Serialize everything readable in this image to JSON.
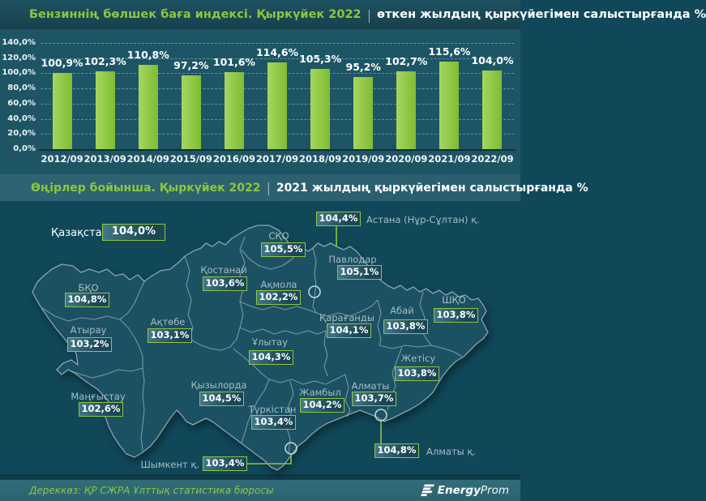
{
  "header": {
    "title_green": "Бензиннің бөлшек баға индексі. Қыркүйек 2022",
    "separator": "|",
    "title_white": "өткен жылдың қыркүйегімен салыстырғанда %"
  },
  "chart_data": {
    "type": "bar",
    "title": "Бензиннің бөлшек баға индексі. Қыркүйек 2022 | өткен жылдың қыркүйегімен салыстырғанда %",
    "categories": [
      "2012/09",
      "2013/09",
      "2014/09",
      "2015/09",
      "2016/09",
      "2017/09",
      "2018/09",
      "2019/09",
      "2020/09",
      "2021/09",
      "2022/09"
    ],
    "values": [
      100.9,
      102.3,
      110.8,
      97.2,
      101.6,
      114.6,
      105.3,
      95.2,
      102.7,
      115.6,
      104.0
    ],
    "value_labels": [
      "100,9%",
      "102,3%",
      "110,8%",
      "97,2%",
      "101,6%",
      "114,6%",
      "105,3%",
      "95,2%",
      "102,7%",
      "115,6%",
      "104,0%"
    ],
    "y_ticks": [
      "140,0%",
      "120,0%",
      "100,0%",
      "80,0%",
      "60,0%",
      "40,0%",
      "20,0%",
      "0,0%"
    ],
    "ylim": [
      0,
      140
    ],
    "xlabel": "",
    "ylabel": "",
    "grid": true,
    "legend": "none",
    "bar_color": "#8DC63F"
  },
  "section2": {
    "title_green": "Өңірлер бойынша. Қыркүйек 2022",
    "separator": "|",
    "title_white": "2021 жылдың қыркүйегімен салыстырғанда %"
  },
  "map": {
    "country": {
      "name": "Қазақстан",
      "value": "104,0%"
    },
    "regions": [
      {
        "name": "БҚО",
        "value": "104,8%"
      },
      {
        "name": "Атырау",
        "value": "103,2%"
      },
      {
        "name": "Маңғыстау",
        "value": "102,6%"
      },
      {
        "name": "Ақтөбе",
        "value": "103,1%"
      },
      {
        "name": "Қостанай",
        "value": "103,6%"
      },
      {
        "name": "СҚО",
        "value": "105,5%"
      },
      {
        "name": "Ақмола",
        "value": "102,2%"
      },
      {
        "name": "Павлодар",
        "value": "105,1%"
      },
      {
        "name": "Қарағанды",
        "value": "104,1%"
      },
      {
        "name": "Ұлытау",
        "value": "104,3%"
      },
      {
        "name": "Абай",
        "value": "103,8%"
      },
      {
        "name": "ШҚО",
        "value": "103,8%"
      },
      {
        "name": "Жетісу",
        "value": "103,8%"
      },
      {
        "name": "Алматы",
        "value": "103,7%"
      },
      {
        "name": "Жамбыл",
        "value": "104,2%"
      },
      {
        "name": "Қызылорда",
        "value": "104,5%"
      },
      {
        "name": "Түркістан",
        "value": "103,4%"
      }
    ],
    "cities": [
      {
        "name": "Астана (Нұр-Сұлтан) қ.",
        "value": "104,4%"
      },
      {
        "name": "Алматы қ.",
        "value": "104,8%"
      },
      {
        "name": "Шымкент қ.",
        "value": "103,4%"
      }
    ]
  },
  "footer": {
    "source": "Дереккөз: ҚР СЖРА Ұлттық статистика бюросы",
    "logo_bold": "Energy",
    "logo_light": "Prom"
  },
  "colors": {
    "accent_green": "#8DC63F",
    "bar_green": "#8DC63F",
    "background_teal": "#1E5565",
    "map_background": "#10485A",
    "land_fill": "#1B5162",
    "border_line": "#A9BEC6",
    "text_white": "#FFFFFF",
    "label_muted": "#A8BDC6"
  }
}
